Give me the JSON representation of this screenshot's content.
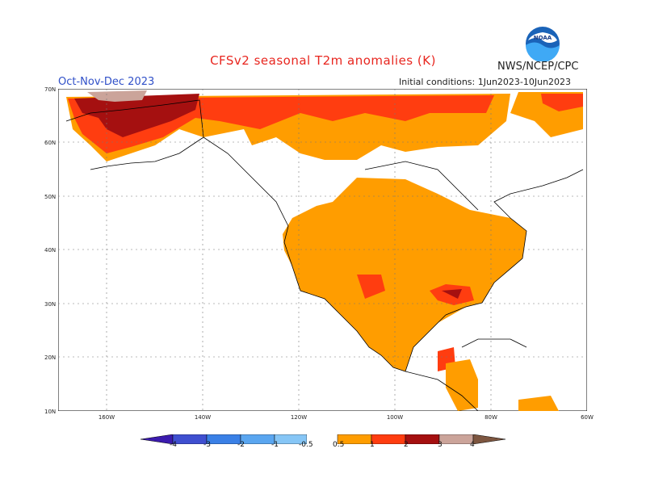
{
  "header": {
    "title": "CFSv2 seasonal T2m anomalies (K)",
    "agency": "NWS/NCEP/CPC",
    "logo_text": "NOAA",
    "period": "Oct-Nov-Dec 2023",
    "initial_conditions": "Initial conditions: 1Jun2023-10Jun2023"
  },
  "axes": {
    "lat_labels": [
      "70N",
      "60N",
      "50N",
      "40N",
      "30N",
      "20N",
      "10N"
    ],
    "lon_labels": [
      "160W",
      "140W",
      "120W",
      "100W",
      "80W",
      "60W"
    ]
  },
  "legend": {
    "labels": [
      "-4",
      "-3",
      "-2",
      "-1",
      "-0.5",
      "0.5",
      "1",
      "2",
      "3",
      "4"
    ],
    "colors": [
      "#3b1bae",
      "#3f4fd0",
      "#3a80e6",
      "#5aa6f0",
      "#86c6f6",
      "#ffffff",
      "#ff9d00",
      "#ff3d10",
      "#a51010",
      "#cba49a",
      "#7d5640"
    ]
  },
  "colors": {
    "anom_0_5_1": "#ff9d00",
    "anom_1_2": "#ff3d10",
    "anom_2_3": "#a51010",
    "anom_3_4": "#cba49a",
    "title": "#e8261f",
    "period": "#3050c8"
  }
}
